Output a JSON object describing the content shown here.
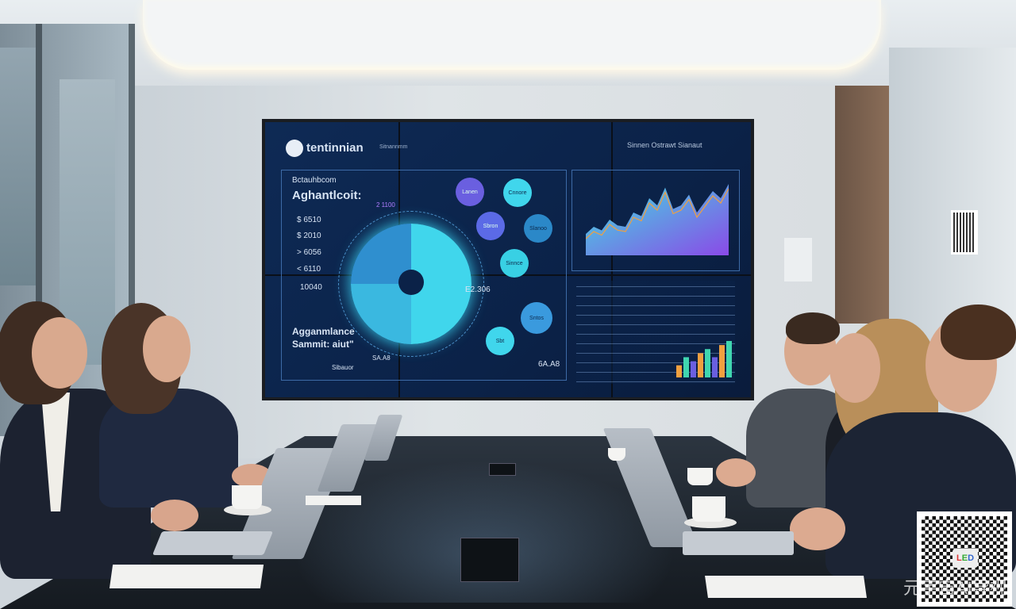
{
  "screen": {
    "brand": "tentinnian",
    "brand_sub": "Sitnannmm",
    "header_right": "Sinnen Ostrawt Sianaut",
    "heading_small": "Bctauhbcom",
    "heading": "Aghantlcoit:",
    "values": [
      "$ 6510",
      "$ 2010",
      "> 6056",
      "< 6110",
      "10040"
    ],
    "label_e2": "E2.306",
    "label_6a": "6A.A8",
    "label_sa": "SA.A8",
    "bottom_title_1": "Agganmlance",
    "bottom_title_2": "Sammit: aiut\"",
    "bottom_label": "Sibauor",
    "purple_label": "2 1100",
    "bubbles": [
      "Lanen",
      "Cnnore",
      "Sbron",
      "Slanoo",
      "Sinnce",
      "Sntos",
      "Sbt"
    ],
    "area_series": [
      3,
      4,
      3.5,
      5,
      4.2,
      4,
      6,
      5.5,
      8,
      7,
      9.5,
      6.5,
      7,
      8.5,
      6,
      7.5,
      9,
      8,
      10
    ],
    "bar_series": [
      3,
      5,
      4,
      6,
      7,
      5,
      8,
      9
    ],
    "colors": {
      "screen_bg": "#0e2a55",
      "cyan": "#40d6ec",
      "violet": "#6a5fe0",
      "orange": "#f0a040"
    }
  },
  "watermark": {
    "text": "元宇宙AI导视",
    "qr_logo": "LED"
  }
}
